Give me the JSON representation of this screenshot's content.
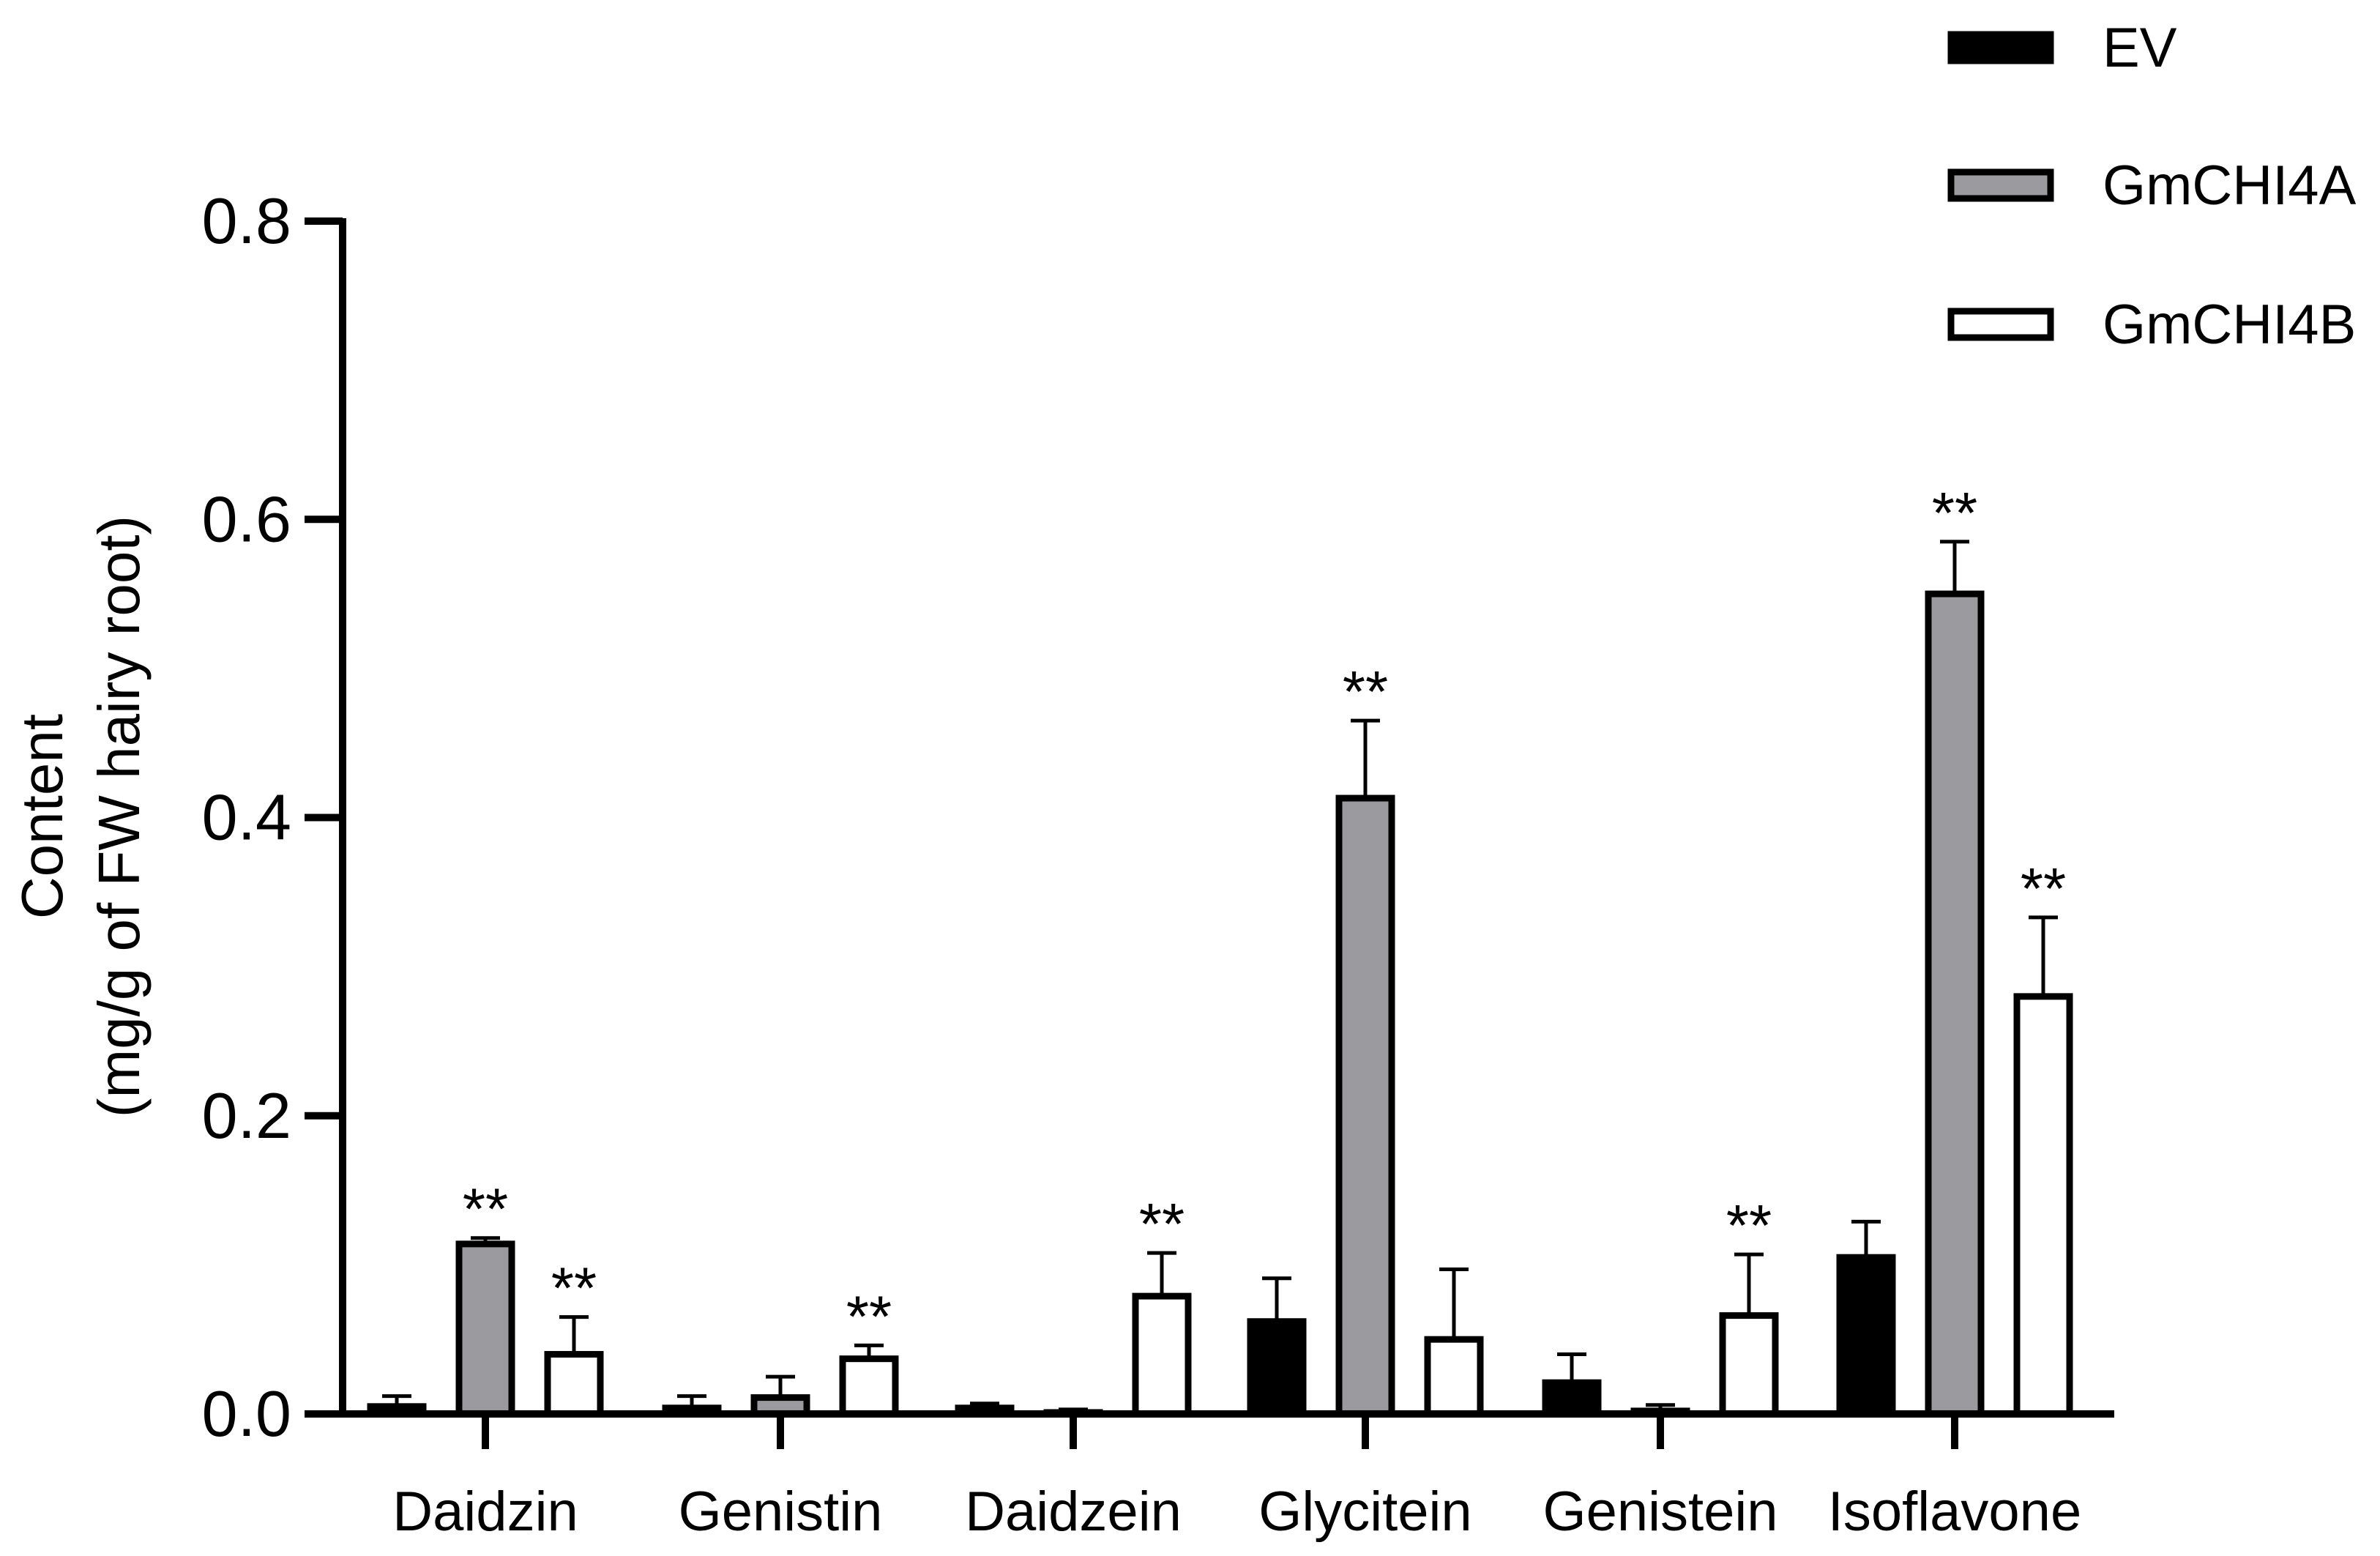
{
  "chart_data": {
    "type": "bar",
    "title": "",
    "xlabel": "",
    "ylabel_line1": "Content",
    "ylabel_line2": "(mg/g of FW hairy root)",
    "ylim": [
      0,
      0.8
    ],
    "yticks": [
      "0.0",
      "0.2",
      "0.4",
      "0.6",
      "0.8"
    ],
    "categories": [
      "Daidzin",
      "Genistin",
      "Daidzein",
      "Glycitein",
      "Genistein",
      "Isoflavone"
    ],
    "series": [
      {
        "name": "EV",
        "fill": "#000000",
        "values": [
          0.005,
          0.004,
          0.004,
          0.062,
          0.021,
          0.105
        ],
        "errors": [
          0.007,
          0.008,
          0.003,
          0.029,
          0.019,
          0.024
        ],
        "significance": [
          "",
          "",
          "",
          "",
          "",
          ""
        ]
      },
      {
        "name": "GmCHI4A",
        "fill": "#9b9b9f",
        "values": [
          0.114,
          0.011,
          0.001,
          0.413,
          0.002,
          0.55
        ],
        "errors": [
          0.004,
          0.014,
          0.002,
          0.052,
          0.004,
          0.035
        ],
        "significance": [
          "**",
          "",
          "",
          "**",
          "",
          "**"
        ]
      },
      {
        "name": "GmCHI4B",
        "fill": "#ffffff",
        "values": [
          0.04,
          0.037,
          0.079,
          0.05,
          0.066,
          0.28
        ],
        "errors": [
          0.025,
          0.009,
          0.029,
          0.047,
          0.041,
          0.053
        ],
        "significance": [
          "**",
          "**",
          "**",
          "",
          "**",
          "**"
        ]
      }
    ],
    "legend_position": "top-right"
  }
}
